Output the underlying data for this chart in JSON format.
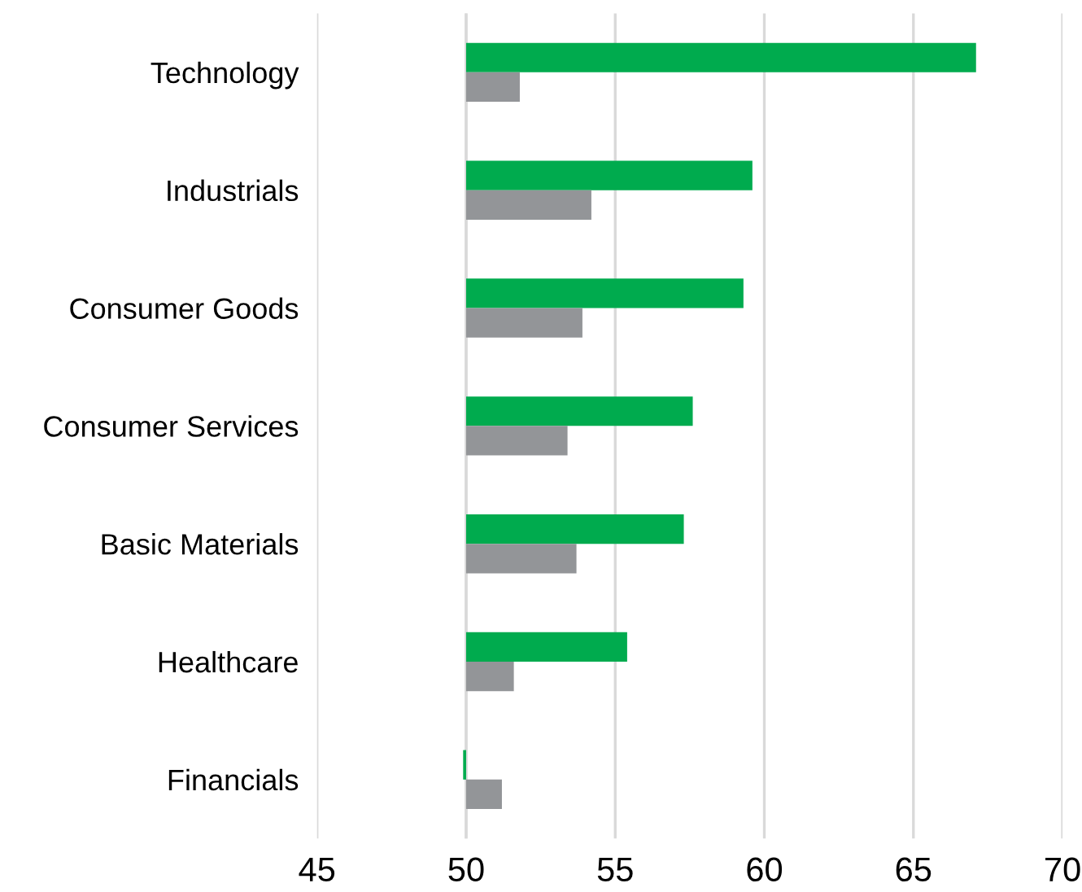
{
  "chart_data": {
    "type": "bar",
    "orientation": "horizontal",
    "categories": [
      "Technology",
      "Industrials",
      "Consumer Goods",
      "Consumer Services",
      "Basic Materials",
      "Healthcare",
      "Financials"
    ],
    "series": [
      {
        "color": "#00ab4e",
        "base": [
          50,
          50,
          50,
          50,
          50,
          50,
          50
        ],
        "values": [
          17.1,
          9.6,
          9.3,
          7.6,
          7.3,
          5.4,
          -0.1
        ]
      },
      {
        "color": "#939598",
        "base": [
          50,
          50,
          50,
          50,
          50,
          50,
          50
        ],
        "values": [
          1.8,
          4.2,
          3.9,
          3.4,
          3.7,
          1.6,
          1.2
        ]
      }
    ],
    "xlim": [
      45,
      70
    ],
    "xticks": [
      45,
      50,
      55,
      60,
      65,
      70
    ],
    "grid": "x"
  }
}
